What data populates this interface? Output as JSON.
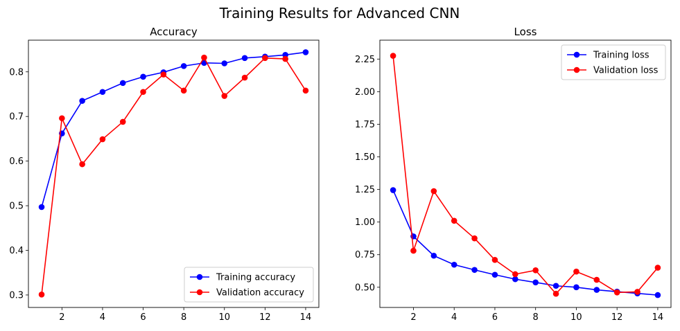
{
  "figure_title": "Training Results for Advanced CNN",
  "colors": {
    "training": "#0000ff",
    "validation": "#ff0000"
  },
  "chart_data": [
    {
      "type": "line",
      "title": "Accuracy",
      "xlabel": "",
      "ylabel": "",
      "x": [
        1,
        2,
        3,
        4,
        5,
        6,
        7,
        8,
        9,
        10,
        11,
        12,
        13,
        14
      ],
      "xlim": [
        0.35,
        14.65
      ],
      "ylim": [
        0.272,
        0.871
      ],
      "xticks": [
        2,
        4,
        6,
        8,
        10,
        12,
        14
      ],
      "yticks": [
        0.3,
        0.4,
        0.5,
        0.6,
        0.7,
        0.8
      ],
      "ytick_labels": [
        "0.3",
        "0.4",
        "0.5",
        "0.6",
        "0.7",
        "0.8"
      ],
      "legend_position": "lower-right",
      "series": [
        {
          "name": "Training accuracy",
          "color": "#0000ff",
          "values": [
            0.497,
            0.662,
            0.735,
            0.755,
            0.775,
            0.789,
            0.799,
            0.813,
            0.82,
            0.819,
            0.831,
            0.834,
            0.838,
            0.844
          ]
        },
        {
          "name": "Validation accuracy",
          "color": "#ff0000",
          "values": [
            0.301,
            0.696,
            0.593,
            0.649,
            0.688,
            0.755,
            0.794,
            0.758,
            0.832,
            0.746,
            0.787,
            0.831,
            0.829,
            0.758
          ]
        }
      ]
    },
    {
      "type": "line",
      "title": "Loss",
      "xlabel": "",
      "ylabel": "",
      "x": [
        1,
        2,
        3,
        4,
        5,
        6,
        7,
        8,
        9,
        10,
        11,
        12,
        13,
        14
      ],
      "xlim": [
        0.35,
        14.65
      ],
      "ylim": [
        0.345,
        2.395
      ],
      "xticks": [
        2,
        4,
        6,
        8,
        10,
        12,
        14
      ],
      "yticks": [
        0.5,
        0.75,
        1.0,
        1.25,
        1.5,
        1.75,
        2.0,
        2.25
      ],
      "ytick_labels": [
        "0.50",
        "0.75",
        "1.00",
        "1.25",
        "1.50",
        "1.75",
        "2.00",
        "2.25"
      ],
      "legend_position": "upper-right",
      "series": [
        {
          "name": "Training loss",
          "color": "#0000ff",
          "values": [
            1.245,
            0.89,
            0.742,
            0.673,
            0.633,
            0.596,
            0.562,
            0.537,
            0.511,
            0.5,
            0.48,
            0.466,
            0.453,
            0.44
          ]
        },
        {
          "name": "Validation loss",
          "color": "#ff0000",
          "values": [
            2.275,
            0.78,
            1.237,
            1.01,
            0.875,
            0.71,
            0.6,
            0.63,
            0.45,
            0.62,
            0.557,
            0.46,
            0.465,
            0.65
          ]
        }
      ]
    }
  ]
}
